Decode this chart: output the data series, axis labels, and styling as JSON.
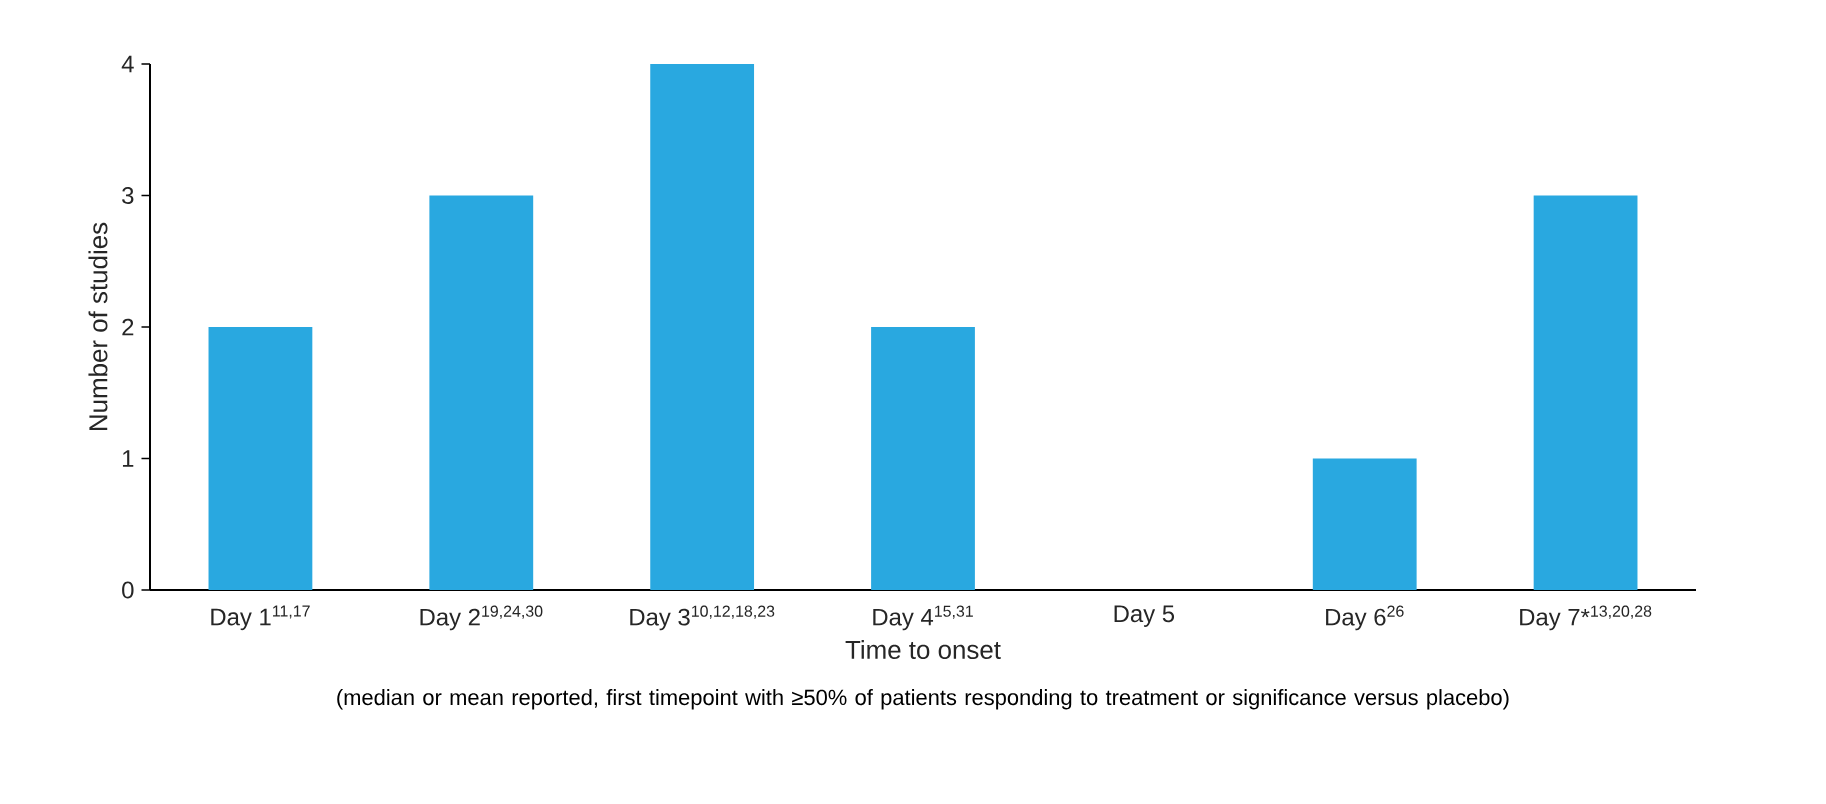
{
  "chart_data": {
    "type": "bar",
    "categories": [
      "Day 1$^{11,17}$",
      "Day 2$^{19,24,30}$",
      "Day 3$^{10,12,18,23}$",
      "Day 4$^{15,31}$",
      "Day 5",
      "Day 6$^{26}$",
      "Day 7*$^{13,20,28}$"
    ],
    "values": [
      2,
      3,
      4,
      2,
      0,
      1,
      3
    ],
    "color": "#29a8e0",
    "xlabel": "Time to onset",
    "ylabel": "Number of studies",
    "ylim": [
      0,
      4
    ],
    "yticks": [
      0,
      1,
      2,
      3,
      4
    ],
    "annotations": [
      "(median or mean reported, first timepoint with ≥50% of patients responding to treatment or significance versus placebo)"
    ]
  }
}
